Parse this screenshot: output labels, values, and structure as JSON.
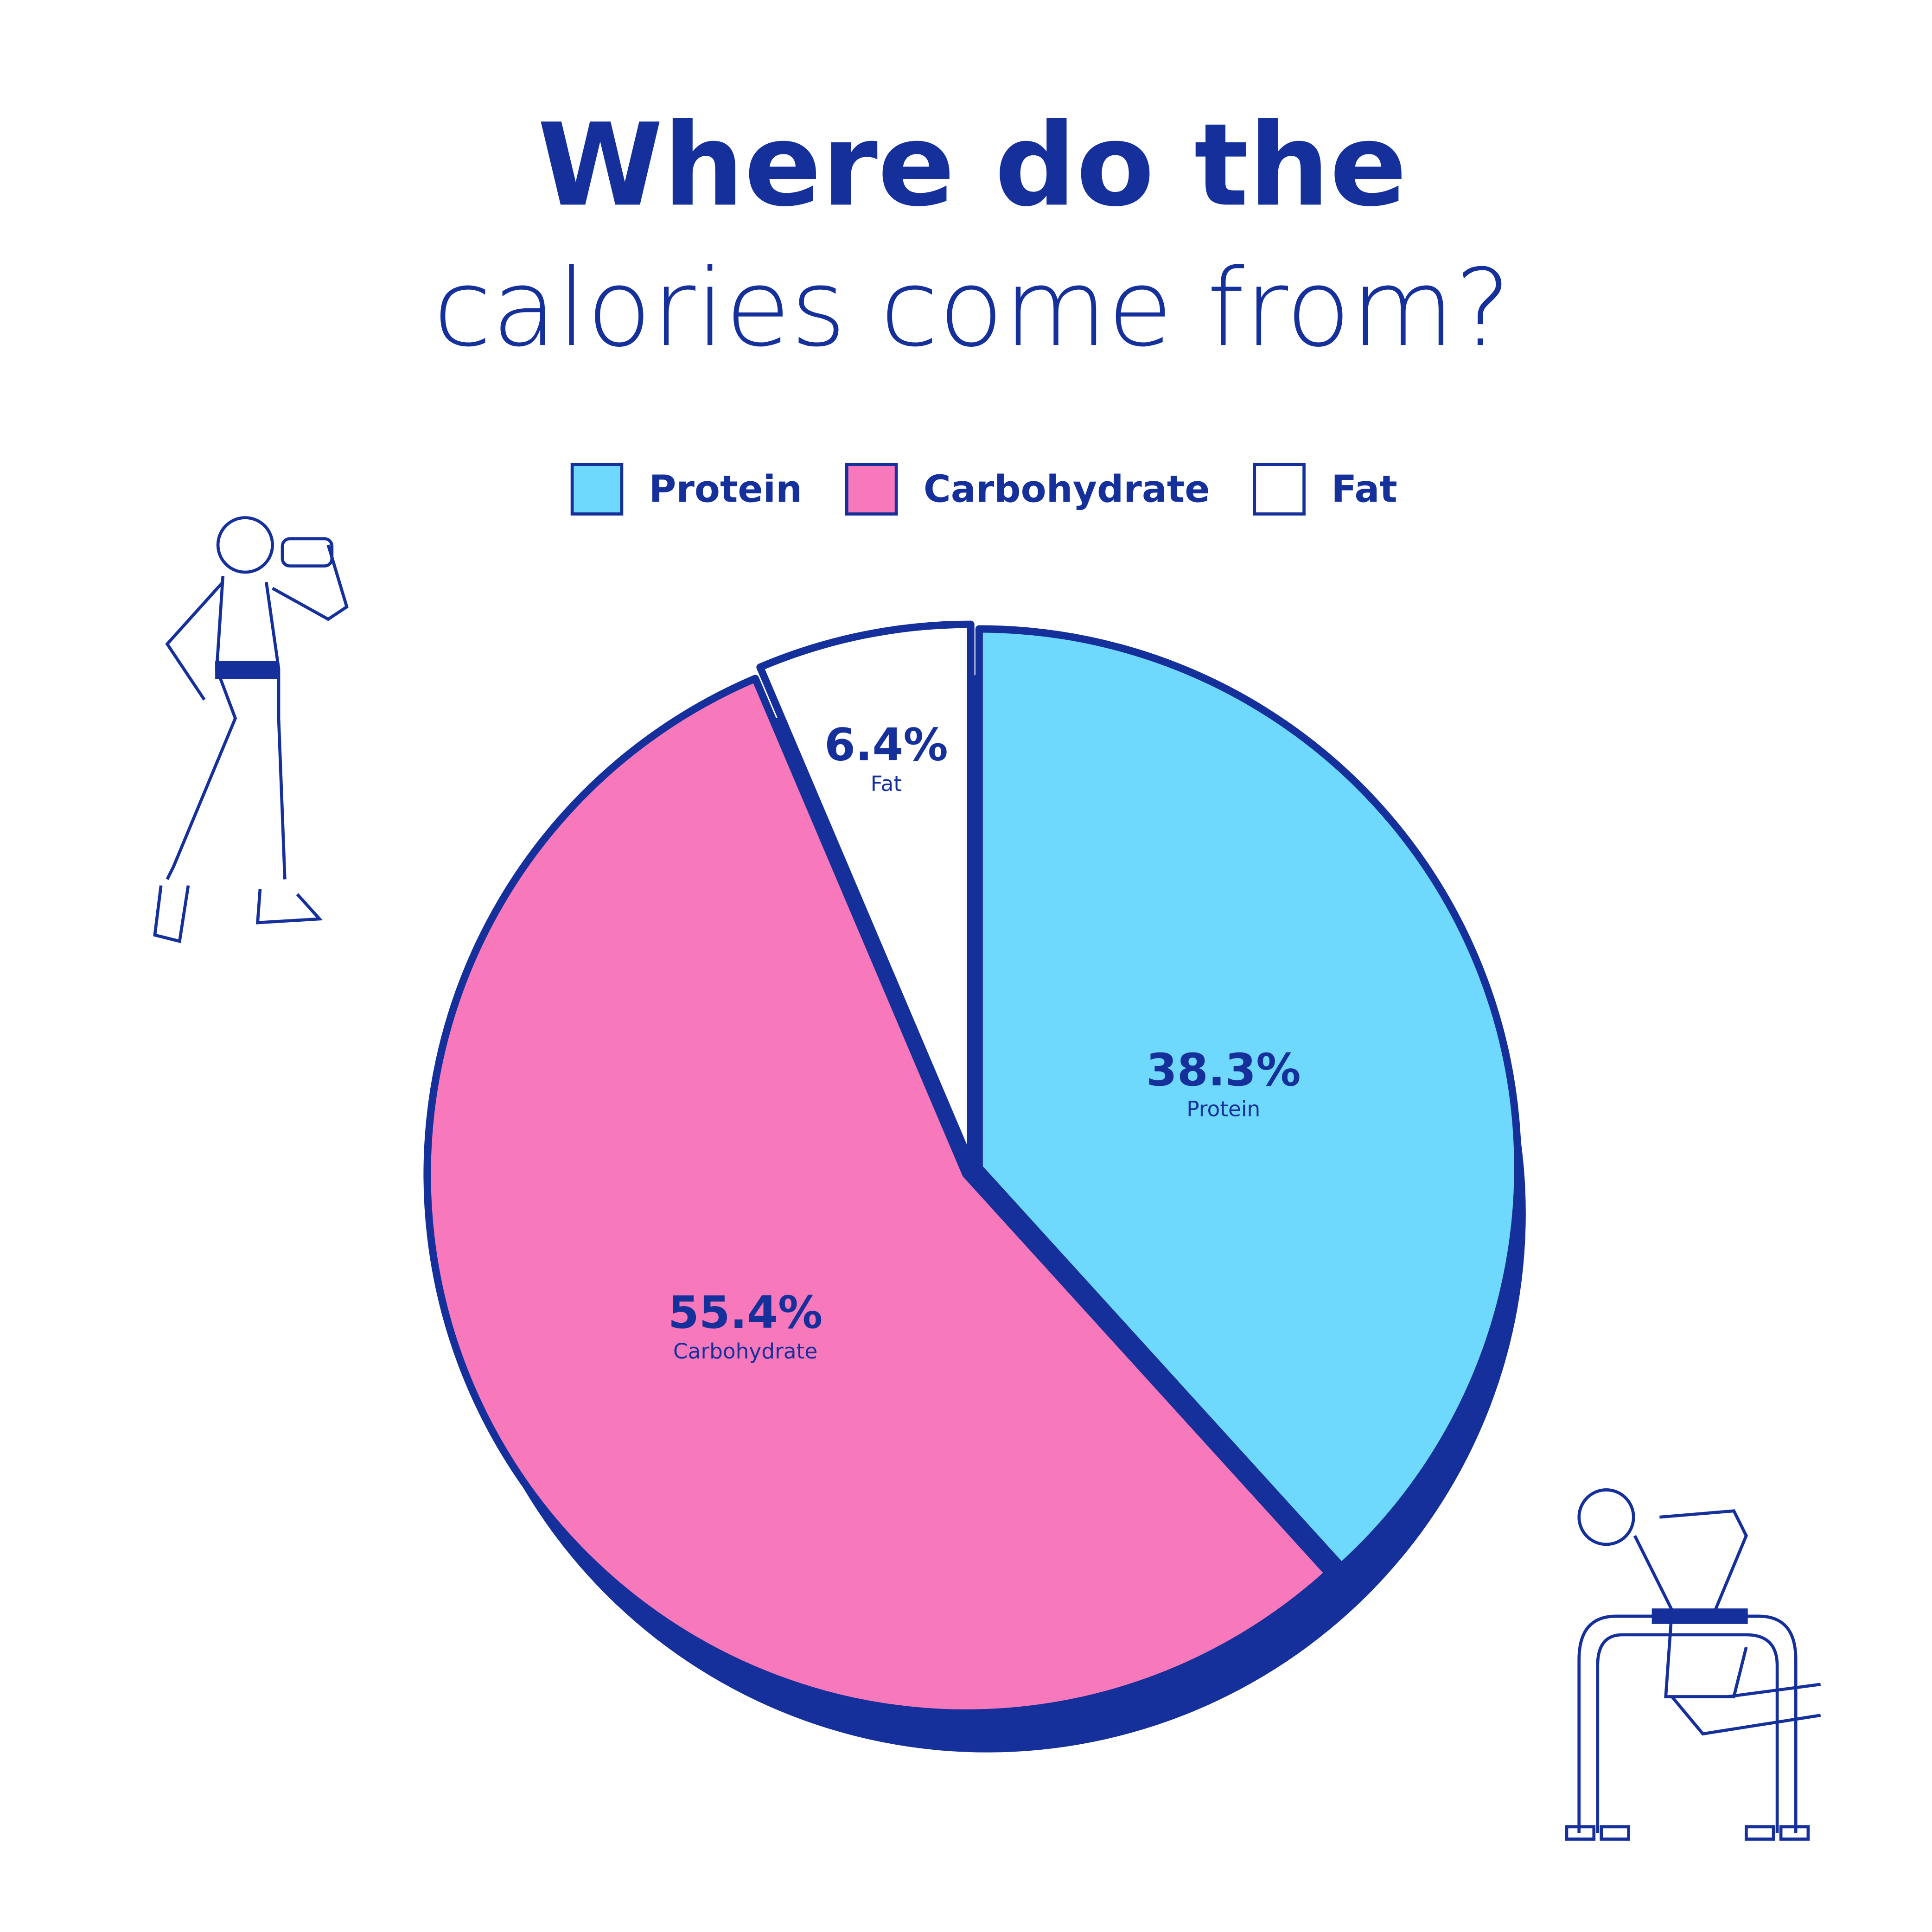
{
  "chart_data": {
    "type": "pie",
    "title": "Where do the",
    "subtitle": "calories come from?",
    "categories": [
      "Protein",
      "Carbohydrate",
      "Fat"
    ],
    "values": [
      38.3,
      55.4,
      6.4
    ],
    "value_labels": [
      "38.3%",
      "55.4%",
      "6.4%"
    ],
    "colors": [
      "#6fd8fd",
      "#f878bc",
      "#ffffff"
    ],
    "legend": "top"
  }
}
